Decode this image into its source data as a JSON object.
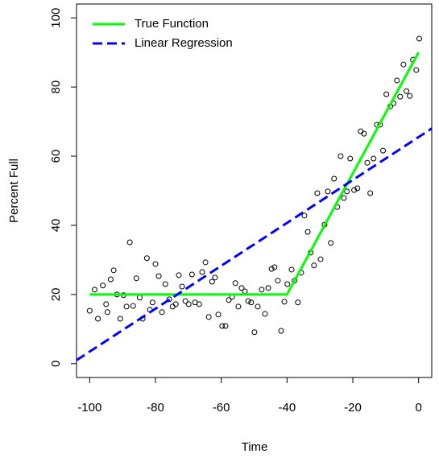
{
  "chart_data": {
    "type": "scatter",
    "xlabel": "Time",
    "ylabel": "Percent Full",
    "xlim": [
      -104,
      4
    ],
    "ylim": [
      -4,
      104
    ],
    "xticks": [
      -100,
      -80,
      -60,
      -40,
      -20,
      0
    ],
    "yticks": [
      0,
      20,
      40,
      60,
      80,
      100
    ],
    "legend": "top-left",
    "points": {
      "color": "#000000",
      "x": [
        -100,
        -98.5,
        -97.5,
        -96,
        -95,
        -94.6,
        -93.6,
        -92.7,
        -91.7,
        -90.7,
        -89.7,
        -88.8,
        -87.8,
        -86.8,
        -85.8,
        -84.8,
        -83.9,
        -82.6,
        -81.7,
        -80.9,
        -80,
        -79,
        -78,
        -77,
        -75.8,
        -74.8,
        -73.8,
        -72.9,
        -71.9,
        -70.9,
        -69.9,
        -68.9,
        -68,
        -66.7,
        -65.8,
        -64.8,
        -63.8,
        -62.8,
        -61.9,
        -60.9,
        -59.7,
        -58.7,
        -57.7,
        -56.7,
        -55.7,
        -54.8,
        -53.8,
        -52.8,
        -51.8,
        -50.9,
        -49.9,
        -48.9,
        -47.7,
        -46.7,
        -45.7,
        -44.7,
        -43.8,
        -42.8,
        -41.8,
        -40.8,
        -39.9,
        -38.6,
        -37.7,
        -36.7,
        -35.7,
        -34.7,
        -33.7,
        -32.8,
        -31.8,
        -30.8,
        -29.8,
        -28.6,
        -27.6,
        -26.7,
        -25.7,
        -24.7,
        -23.7,
        -22.7,
        -21.8,
        -20.8,
        -19.6,
        -18.6,
        -17.6,
        -16.6,
        -15.6,
        -14.7,
        -13.7,
        -12.7,
        -11.7,
        -10.8,
        -9.8,
        -8.6,
        -7.6,
        -6.6,
        -5.6,
        -4.6,
        -3.7,
        -2.7,
        -1.7,
        -0.7,
        0.2
      ],
      "values": [
        15.3,
        21.4,
        13,
        22.6,
        17.2,
        14.9,
        24.4,
        27,
        20,
        13,
        19.8,
        16.5,
        35.1,
        16.7,
        24.7,
        19.1,
        13,
        30.5,
        15.6,
        17.7,
        28.8,
        25.3,
        14.9,
        23,
        18.6,
        16.5,
        17.2,
        25.6,
        22.3,
        18.1,
        17.2,
        25.8,
        17.7,
        17.2,
        26.5,
        29.3,
        13.5,
        23.7,
        24.9,
        14.2,
        10.9,
        10.9,
        18.4,
        19.3,
        23.3,
        16.5,
        21.9,
        20.9,
        18.1,
        17.7,
        9.1,
        16.5,
        21.4,
        14.4,
        21.9,
        27.4,
        27.9,
        24,
        9.5,
        17.9,
        23,
        27.2,
        24,
        17.7,
        26.3,
        42.8,
        38.1,
        32.1,
        28.4,
        49.3,
        30.2,
        40.2,
        49.8,
        34.9,
        53.5,
        45.3,
        60,
        47.9,
        49.8,
        59.3,
        50.2,
        50.7,
        67.2,
        66.5,
        58.1,
        49.3,
        59.3,
        69.1,
        69.1,
        61.6,
        77.9,
        74.4,
        75.3,
        81.9,
        77.2,
        86.5,
        78.8,
        77.4,
        87.9,
        84.9,
        94
      ]
    },
    "series": [
      {
        "name": "True Function",
        "color": "#00ff00",
        "dashed": false,
        "x": [
          -100,
          -40,
          0
        ],
        "values": [
          20,
          20,
          90
        ]
      },
      {
        "name": "Linear Regression",
        "color": "#0000ff",
        "dashed": true,
        "x": [
          -104,
          4
        ],
        "values": [
          1,
          68
        ]
      }
    ]
  }
}
